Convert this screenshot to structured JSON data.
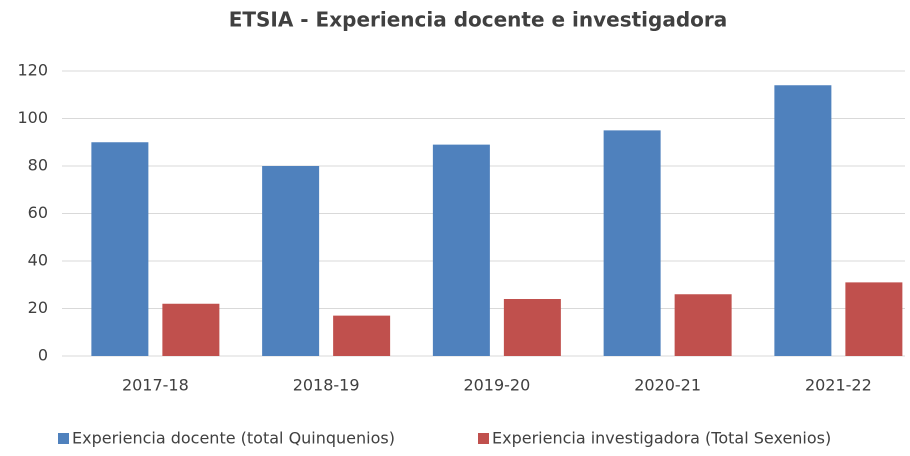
{
  "chart_data": {
    "type": "bar",
    "title": "ETSIA - Experiencia docente e investigadora",
    "categories": [
      "2017-18",
      "2018-19",
      "2019-20",
      "2020-21",
      "2021-22"
    ],
    "series": [
      {
        "name": "Experiencia docente (total Quinquenios)",
        "color": "#4f81bd",
        "values": [
          90,
          80,
          89,
          95,
          114
        ]
      },
      {
        "name": "Experiencia investigadora (Total Sexenios)",
        "color": "#c0504d",
        "values": [
          22,
          17,
          24,
          26,
          31
        ]
      }
    ],
    "ylim": [
      0,
      120
    ],
    "yticks": [
      0,
      20,
      40,
      60,
      80,
      100,
      120
    ],
    "grid": true,
    "legend": "bottom"
  }
}
